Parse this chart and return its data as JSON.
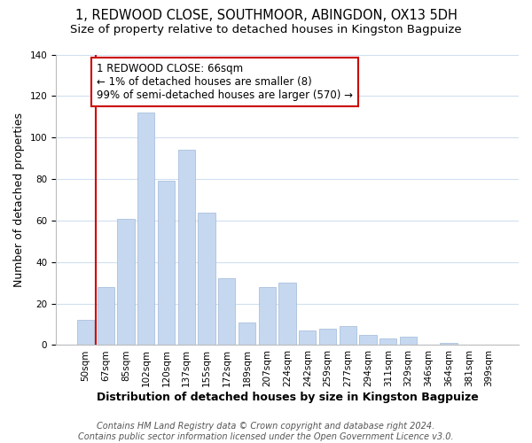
{
  "title": "1, REDWOOD CLOSE, SOUTHMOOR, ABINGDON, OX13 5DH",
  "subtitle": "Size of property relative to detached houses in Kingston Bagpuize",
  "xlabel": "Distribution of detached houses by size in Kingston Bagpuize",
  "ylabel": "Number of detached properties",
  "bin_labels": [
    "50sqm",
    "67sqm",
    "85sqm",
    "102sqm",
    "120sqm",
    "137sqm",
    "155sqm",
    "172sqm",
    "189sqm",
    "207sqm",
    "224sqm",
    "242sqm",
    "259sqm",
    "277sqm",
    "294sqm",
    "311sqm",
    "329sqm",
    "346sqm",
    "364sqm",
    "381sqm",
    "399sqm"
  ],
  "bar_heights": [
    12,
    28,
    61,
    112,
    79,
    94,
    64,
    32,
    11,
    28,
    30,
    7,
    8,
    9,
    5,
    3,
    4,
    0,
    1,
    0,
    0
  ],
  "bar_color": "#c5d8f0",
  "ylim": [
    0,
    140
  ],
  "yticks": [
    0,
    20,
    40,
    60,
    80,
    100,
    120,
    140
  ],
  "red_line_bar_index": 1,
  "annotation_title": "1 REDWOOD CLOSE: 66sqm",
  "annotation_line1": "← 1% of detached houses are smaller (8)",
  "annotation_line2": "99% of semi-detached houses are larger (570) →",
  "annotation_box_facecolor": "#ffffff",
  "annotation_box_edgecolor": "#cc0000",
  "footer_line1": "Contains HM Land Registry data © Crown copyright and database right 2024.",
  "footer_line2": "Contains public sector information licensed under the Open Government Licence v3.0.",
  "title_fontsize": 10.5,
  "subtitle_fontsize": 9.5,
  "axis_label_fontsize": 9,
  "tick_fontsize": 7.5,
  "annotation_fontsize": 8.5,
  "footer_fontsize": 7,
  "grid_color": "#d0dff0",
  "spine_color": "#bbbbbb"
}
